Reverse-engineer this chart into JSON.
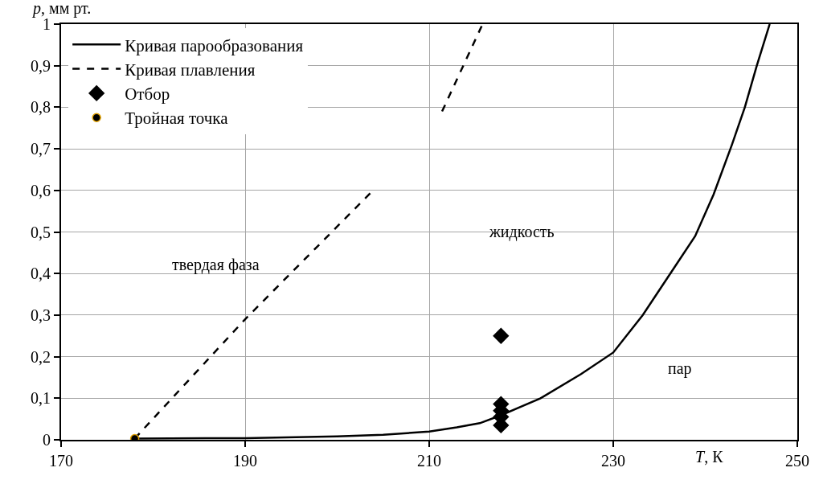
{
  "chart_data": {
    "type": "line",
    "xlabel": "T, К",
    "ylabel": "p, мм рт.",
    "xlim": [
      170,
      250
    ],
    "xticks": [
      170,
      190,
      210,
      230,
      250
    ],
    "ylim": [
      0,
      1
    ],
    "yticks": [
      0,
      {
        "value": 0.1,
        "label": "0,1"
      },
      {
        "value": 0.2,
        "label": "0,2"
      },
      {
        "value": 0.3,
        "label": "0,3"
      },
      {
        "value": 0.4,
        "label": "0,4"
      },
      {
        "value": 0.5,
        "label": "0,5"
      },
      {
        "value": 0.6,
        "label": "0,6"
      },
      {
        "value": 0.7,
        "label": "0,7"
      },
      {
        "value": 0.8,
        "label": "0,8"
      },
      {
        "value": 0.9,
        "label": "0,9"
      },
      1
    ],
    "grid": true,
    "legend": "top left",
    "series": [
      {
        "name": "Кривая парообразования",
        "line_style": "solid",
        "marker": "none",
        "color": "#000000",
        "x": [
          178,
          190,
          200,
          205,
          210,
          213,
          215.5,
          217.8,
          222.1,
          226.5,
          230,
          233.2,
          236.2,
          238.9,
          240.9,
          242.9,
          244.3,
          245.6,
          247
        ],
        "values": [
          0.003,
          0.004,
          0.008,
          0.012,
          0.02,
          0.03,
          0.04,
          0.059,
          0.1,
          0.158,
          0.21,
          0.3,
          0.4,
          0.49,
          0.59,
          0.71,
          0.8,
          0.9,
          1.0
        ]
      },
      {
        "name": "Кривая плавления",
        "line_style": "dashed",
        "marker": "none",
        "color": "#000000",
        "x": [
          178,
          190,
          203.9,
          207,
          211.4,
          215.8
        ],
        "values": [
          0.003,
          0.29,
          0.6,
          null,
          0.79,
          1.0
        ]
      },
      {
        "name": "Отбор",
        "type": "scatter",
        "marker": "diamond",
        "color": "#000000",
        "x": [
          217.8,
          217.8,
          217.8,
          217.8,
          217.8
        ],
        "values": [
          0.25,
          0.086,
          0.07,
          0.055,
          0.035
        ]
      },
      {
        "name": "Тройная точка",
        "type": "scatter",
        "marker": "circle",
        "color": "#000000",
        "x": [
          178
        ],
        "values": [
          0.003
        ]
      }
    ],
    "annotations": [
      "твердая фаза",
      "жидкость",
      "пар"
    ]
  }
}
